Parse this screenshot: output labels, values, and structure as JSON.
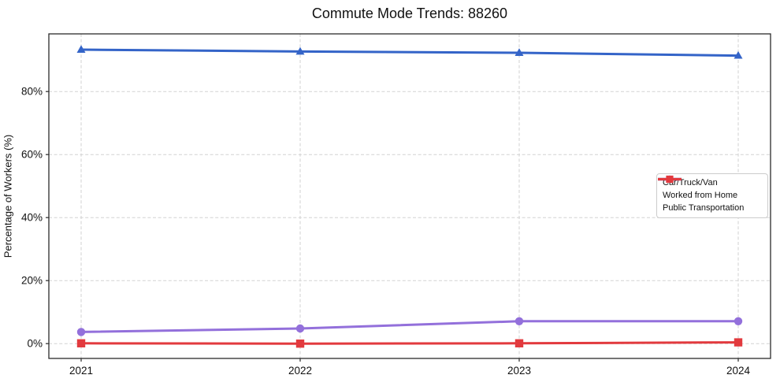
{
  "chart_data": {
    "type": "line",
    "title": "Commute Mode Trends: 88260",
    "xlabel": "",
    "ylabel": "Percentage of Workers (%)",
    "x_labels": [
      "2021",
      "2022",
      "2023",
      "2024"
    ],
    "series": [
      {
        "name": "Car/Truck/Van",
        "marker": "triangle",
        "color": "#3464c8",
        "values": [
          93.3,
          92.7,
          92.3,
          91.4
        ]
      },
      {
        "name": "Worked from Home",
        "marker": "circle",
        "color": "#9370db",
        "values": [
          3.7,
          4.8,
          7.1,
          7.1
        ]
      },
      {
        "name": "Public Transportation",
        "marker": "square",
        "color": "#e23a3e",
        "values": [
          0.1,
          0.0,
          0.1,
          0.4
        ]
      }
    ],
    "yticks": [
      {
        "value": 0,
        "label": "0%"
      },
      {
        "value": 20,
        "label": "20%"
      },
      {
        "value": 40,
        "label": "40%"
      },
      {
        "value": 60,
        "label": "60%"
      },
      {
        "value": 80,
        "label": "80%"
      }
    ],
    "ylim": [
      -4.7,
      98.3
    ],
    "grid": true,
    "grid_style": "dashed",
    "legend_position": "center-right"
  },
  "colors": {
    "grid": "#d2d2d2",
    "spine": "#2b2b2b",
    "text": "#111111",
    "background": "#ffffff"
  }
}
